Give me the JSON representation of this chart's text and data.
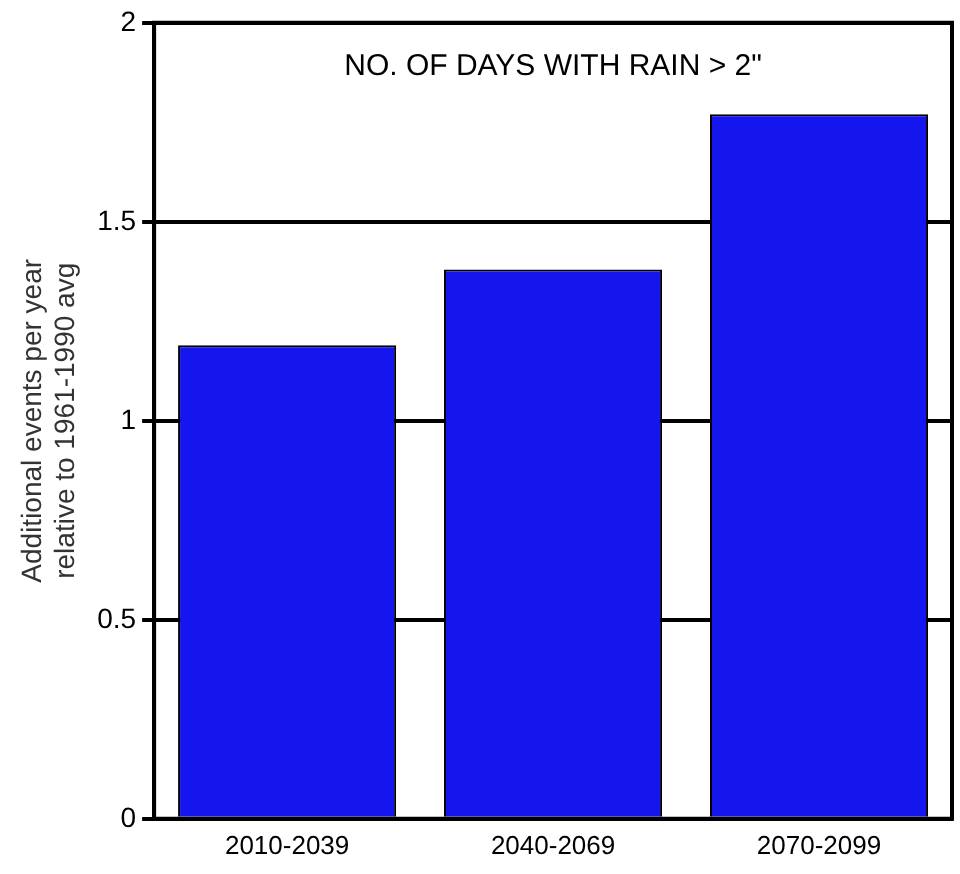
{
  "chart_data": {
    "type": "bar",
    "title": "NO. OF DAYS WITH RAIN > 2\"",
    "ylabel": "Additional events per year\nrelative to 1961-1990 avg",
    "categories": [
      "2010-2039",
      "2040-2069",
      "2070-2099"
    ],
    "values": [
      1.19,
      1.38,
      1.77
    ],
    "color": "#1515ee",
    "ylim": [
      0,
      2
    ],
    "yticks": [
      0,
      0.5,
      1,
      1.5,
      2
    ],
    "grid": "y",
    "legend": false
  }
}
